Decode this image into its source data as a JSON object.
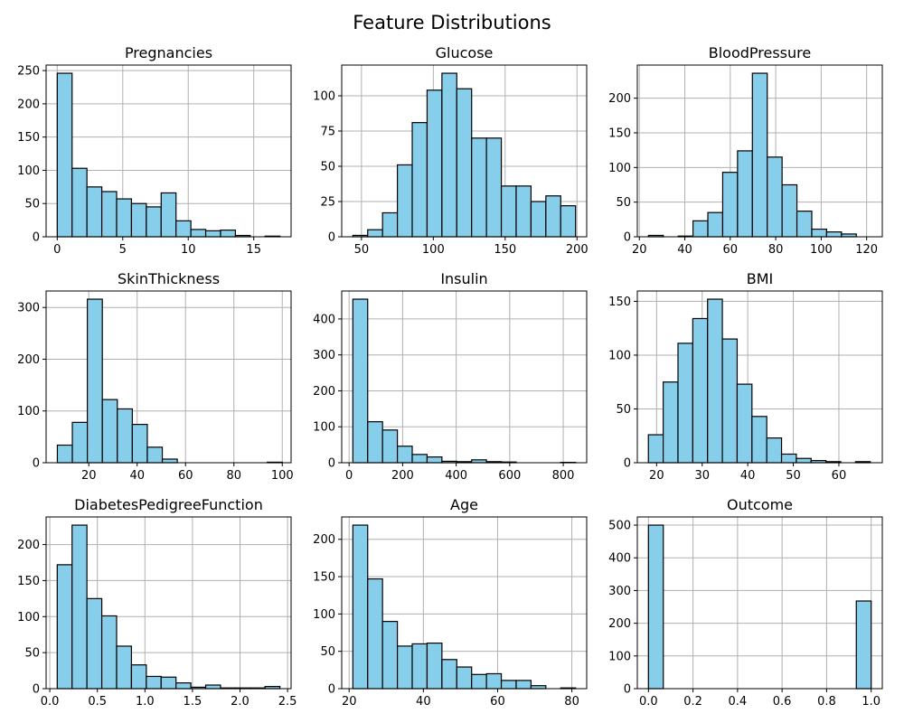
{
  "figure": {
    "title": "Feature Distributions"
  },
  "colors": {
    "bar_fill": "#87ceeb",
    "bar_edge": "#000000",
    "grid": "#b0b0b0"
  },
  "chart_data": [
    {
      "type": "bar",
      "title": "Pregnancies",
      "grid": true,
      "bin_start": 0,
      "bin_width": 1.1333,
      "values": [
        246,
        103,
        75,
        68,
        57,
        50,
        45,
        66,
        24,
        11,
        9,
        10,
        2,
        0,
        1
      ],
      "xlim": [
        -0.85,
        17.85
      ],
      "ylim": [
        0,
        258.3
      ],
      "xticks": [
        0,
        5,
        10,
        15
      ],
      "xtick_labels": [
        "0",
        "5",
        "10",
        "15"
      ],
      "yticks": [
        0,
        50,
        100,
        150,
        200,
        250
      ],
      "ytick_labels": [
        "0",
        "50",
        "100",
        "150",
        "200",
        "250"
      ]
    },
    {
      "type": "bar",
      "title": "Glucose",
      "grid": true,
      "bin_start": 44,
      "bin_width": 10.3333,
      "values": [
        1,
        5,
        17,
        51,
        81,
        104,
        116,
        105,
        70,
        70,
        36,
        36,
        25,
        29,
        22
      ],
      "xlim": [
        36.25,
        206.75
      ],
      "ylim": [
        0,
        121.8
      ],
      "xticks": [
        50,
        100,
        150,
        200
      ],
      "xtick_labels": [
        "50",
        "100",
        "150",
        "200"
      ],
      "yticks": [
        0,
        25,
        50,
        75,
        100
      ],
      "ytick_labels": [
        "0",
        "25",
        "50",
        "75",
        "100"
      ]
    },
    {
      "type": "bar",
      "title": "BloodPressure",
      "grid": true,
      "bin_start": 24,
      "bin_width": 6.5333,
      "values": [
        2,
        0,
        1,
        23,
        35,
        93,
        124,
        236,
        115,
        75,
        37,
        11,
        7,
        4,
        0
      ],
      "xlim": [
        19.1,
        126.9
      ],
      "ylim": [
        0,
        247.8
      ],
      "xticks": [
        20,
        40,
        60,
        80,
        100,
        120
      ],
      "xtick_labels": [
        "20",
        "40",
        "60",
        "80",
        "100",
        "120"
      ],
      "yticks": [
        0,
        50,
        100,
        150,
        200
      ],
      "ytick_labels": [
        "0",
        "50",
        "100",
        "150",
        "200"
      ]
    },
    {
      "type": "bar",
      "title": "SkinThickness",
      "grid": true,
      "bin_start": 7,
      "bin_width": 6.2,
      "values": [
        34,
        78,
        316,
        122,
        104,
        74,
        30,
        7,
        0,
        0,
        0,
        0,
        0,
        0,
        1
      ],
      "xlim": [
        2.35,
        103.65
      ],
      "ylim": [
        0,
        331.8
      ],
      "xticks": [
        20,
        40,
        60,
        80,
        100
      ],
      "xtick_labels": [
        "20",
        "40",
        "60",
        "80",
        "100"
      ],
      "yticks": [
        0,
        100,
        200,
        300
      ],
      "ytick_labels": [
        "0",
        "100",
        "200",
        "300"
      ]
    },
    {
      "type": "bar",
      "title": "Insulin",
      "grid": true,
      "bin_start": 14,
      "bin_width": 55.4667,
      "values": [
        455,
        114,
        91,
        46,
        23,
        16,
        4,
        3,
        8,
        3,
        2,
        0,
        0,
        0,
        1
      ],
      "xlim": [
        -27.6,
        887.6
      ],
      "ylim": [
        0,
        477.75
      ],
      "xticks": [
        0,
        200,
        400,
        600,
        800
      ],
      "xtick_labels": [
        "0",
        "200",
        "400",
        "600",
        "800"
      ],
      "yticks": [
        0,
        100,
        200,
        300,
        400
      ],
      "ytick_labels": [
        "0",
        "100",
        "200",
        "300",
        "400"
      ]
    },
    {
      "type": "bar",
      "title": "BMI",
      "grid": true,
      "bin_start": 18.2,
      "bin_width": 3.2467,
      "values": [
        26,
        75,
        111,
        134,
        152,
        115,
        73,
        43,
        23,
        8,
        4,
        2,
        1,
        0,
        1
      ],
      "xlim": [
        15.77,
        69.53
      ],
      "ylim": [
        0,
        159.6
      ],
      "xticks": [
        20,
        30,
        40,
        50,
        60
      ],
      "xtick_labels": [
        "20",
        "30",
        "40",
        "50",
        "60"
      ],
      "yticks": [
        0,
        50,
        100,
        150
      ],
      "ytick_labels": [
        "0",
        "50",
        "100",
        "150"
      ]
    },
    {
      "type": "bar",
      "title": "DiabetesPedigreeFunction",
      "grid": true,
      "bin_start": 0.078,
      "bin_width": 0.1561,
      "values": [
        172,
        227,
        125,
        101,
        59,
        33,
        17,
        16,
        8,
        2,
        5,
        1,
        1,
        1,
        3
      ],
      "xlim": [
        -0.039,
        2.537
      ],
      "ylim": [
        0,
        238.35
      ],
      "xticks": [
        0.0,
        0.5,
        1.0,
        1.5,
        2.0,
        2.5
      ],
      "xtick_labels": [
        "0.0",
        "0.5",
        "1.0",
        "1.5",
        "2.0",
        "2.5"
      ],
      "yticks": [
        0,
        50,
        100,
        150,
        200
      ],
      "ytick_labels": [
        "0",
        "50",
        "100",
        "150",
        "200"
      ]
    },
    {
      "type": "bar",
      "title": "Age",
      "grid": true,
      "bin_start": 21,
      "bin_width": 4.0,
      "values": [
        219,
        147,
        90,
        57,
        60,
        61,
        39,
        29,
        19,
        20,
        11,
        11,
        4,
        0,
        1
      ],
      "xlim": [
        18,
        84
      ],
      "ylim": [
        0,
        229.95
      ],
      "xticks": [
        20,
        40,
        60,
        80
      ],
      "xtick_labels": [
        "20",
        "40",
        "60",
        "80"
      ],
      "yticks": [
        0,
        50,
        100,
        150,
        200
      ],
      "ytick_labels": [
        "0",
        "50",
        "100",
        "150",
        "200"
      ]
    },
    {
      "type": "bar",
      "title": "Outcome",
      "grid": true,
      "bin_start": 0,
      "bin_width": 0.066667,
      "values": [
        500,
        0,
        0,
        0,
        0,
        0,
        0,
        0,
        0,
        0,
        0,
        0,
        0,
        0,
        268
      ],
      "xlim": [
        -0.05,
        1.05
      ],
      "ylim": [
        0,
        525
      ],
      "xticks": [
        0.0,
        0.2,
        0.4,
        0.6,
        0.8,
        1.0
      ],
      "xtick_labels": [
        "0.0",
        "0.2",
        "0.4",
        "0.6",
        "0.8",
        "1.0"
      ],
      "yticks": [
        0,
        100,
        200,
        300,
        400,
        500
      ],
      "ytick_labels": [
        "0",
        "100",
        "200",
        "300",
        "400",
        "500"
      ]
    }
  ]
}
